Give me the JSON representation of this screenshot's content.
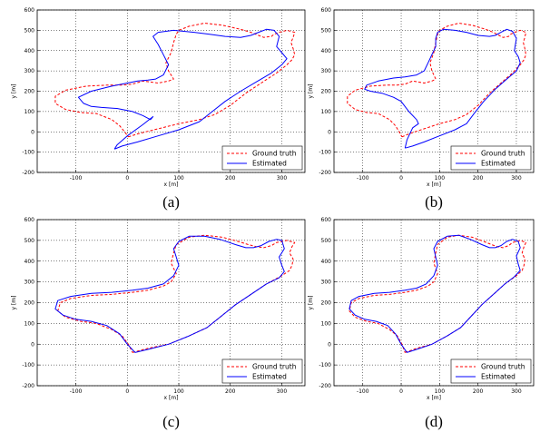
{
  "panels": [
    {
      "caption": "(a)",
      "chart_data": {
        "type": "line",
        "xlabel": "x [m]",
        "ylabel": "y [m]",
        "xlim": [
          -175,
          345
        ],
        "ylim": [
          -200,
          600
        ],
        "xticks": [
          -100,
          0,
          100,
          200,
          300
        ],
        "yticks": [
          -200,
          -100,
          0,
          100,
          200,
          300,
          400,
          500,
          600
        ],
        "grid": true,
        "legend_position": "lower-right",
        "series": [
          {
            "name": "Ground truth",
            "style": "dashed",
            "color": "#ff0000",
            "x": [
              2,
              20,
              60,
              100,
              140,
              170,
              200,
              230,
              260,
              290,
              310,
              320,
              325,
              322,
              318,
              322,
              325,
              310,
              295,
              285,
              280,
              265,
              255,
              240,
              220,
              185,
              150,
              120,
              100,
              95,
              90,
              85,
              75,
              80,
              90,
              80,
              60,
              30,
              10,
              -10,
              -40,
              -80,
              -120,
              -140,
              -140,
              -120,
              -90,
              -60,
              -30,
              -15,
              -5,
              2
            ],
            "y": [
              -25,
              -10,
              15,
              40,
              60,
              85,
              130,
              190,
              240,
              290,
              330,
              355,
              380,
              410,
              440,
              465,
              490,
              500,
              490,
              480,
              470,
              465,
              475,
              490,
              505,
              525,
              535,
              520,
              500,
              480,
              440,
              390,
              340,
              300,
              260,
              250,
              240,
              250,
              235,
              230,
              230,
              225,
              205,
              175,
              140,
              110,
              95,
              90,
              60,
              30,
              0,
              -25
            ]
          },
          {
            "name": "Estimated",
            "style": "solid",
            "color": "#0000ff",
            "x": [
              -25,
              -10,
              20,
              60,
              100,
              140,
              165,
              190,
              220,
              250,
              280,
              300,
              310,
              300,
              290,
              295,
              285,
              270,
              255,
              240,
              220,
              190,
              160,
              130,
              90,
              60,
              50,
              60,
              70,
              80,
              70,
              55,
              40,
              20,
              0,
              -30,
              -70,
              -95,
              -85,
              -70,
              -50,
              -20,
              10,
              30,
              45,
              50,
              30,
              0,
              -20,
              -25
            ],
            "y": [
              -85,
              -70,
              -50,
              -20,
              10,
              50,
              100,
              150,
              200,
              245,
              290,
              330,
              360,
              390,
              420,
              470,
              500,
              505,
              490,
              475,
              465,
              470,
              480,
              490,
              500,
              490,
              470,
              430,
              380,
              330,
              280,
              260,
              255,
              250,
              240,
              225,
              200,
              170,
              140,
              125,
              120,
              115,
              100,
              80,
              60,
              75,
              35,
              -20,
              -65,
              -85
            ]
          }
        ]
      },
      "legend": [
        "Ground truth",
        "Estimated"
      ]
    },
    {
      "caption": "(b)",
      "chart_data": {
        "type": "line",
        "xlabel": "x [m]",
        "ylabel": "y [m]",
        "xlim": [
          -175,
          345
        ],
        "ylim": [
          -200,
          600
        ],
        "xticks": [
          -100,
          0,
          100,
          200,
          300
        ],
        "yticks": [
          -200,
          -100,
          0,
          100,
          200,
          300,
          400,
          500,
          600
        ],
        "grid": true,
        "legend_position": "lower-right",
        "series": [
          {
            "name": "Ground truth",
            "style": "dashed",
            "color": "#ff0000",
            "x": [
              2,
              20,
              60,
              100,
              140,
              170,
              200,
              230,
              260,
              290,
              310,
              320,
              325,
              322,
              318,
              322,
              325,
              310,
              295,
              285,
              280,
              265,
              255,
              240,
              220,
              185,
              150,
              120,
              100,
              95,
              90,
              85,
              75,
              80,
              90,
              80,
              60,
              30,
              10,
              -10,
              -40,
              -80,
              -120,
              -140,
              -140,
              -120,
              -90,
              -60,
              -30,
              -15,
              -5,
              2
            ],
            "y": [
              -25,
              -10,
              15,
              40,
              60,
              85,
              130,
              190,
              240,
              290,
              330,
              355,
              380,
              410,
              440,
              465,
              490,
              500,
              490,
              480,
              470,
              465,
              475,
              490,
              505,
              525,
              535,
              520,
              500,
              480,
              440,
              390,
              340,
              300,
              260,
              250,
              240,
              250,
              235,
              230,
              230,
              225,
              205,
              175,
              140,
              110,
              95,
              90,
              60,
              30,
              0,
              -25
            ]
          },
          {
            "name": "Estimated",
            "style": "solid",
            "color": "#0000ff",
            "x": [
              10,
              30,
              60,
              100,
              140,
              170,
              190,
              215,
              245,
              275,
              300,
              310,
              305,
              295,
              300,
              290,
              275,
              260,
              245,
              230,
              200,
              170,
              140,
              110,
              95,
              90,
              90,
              80,
              70,
              60,
              40,
              10,
              -20,
              -60,
              -90,
              -95,
              -80,
              -50,
              -20,
              0,
              20,
              40,
              45,
              30,
              15,
              10
            ],
            "y": [
              -80,
              -70,
              -50,
              -20,
              10,
              40,
              90,
              150,
              210,
              260,
              300,
              340,
              370,
              400,
              460,
              495,
              505,
              490,
              475,
              470,
              475,
              490,
              500,
              505,
              490,
              460,
              420,
              380,
              340,
              300,
              280,
              270,
              265,
              250,
              230,
              210,
              200,
              190,
              170,
              150,
              100,
              60,
              40,
              20,
              -40,
              -80
            ]
          }
        ]
      },
      "legend": [
        "Ground truth",
        "Estimated"
      ]
    },
    {
      "caption": "(c)",
      "chart_data": {
        "type": "line",
        "xlabel": "x [m]",
        "ylabel": "y [m]",
        "xlim": [
          -175,
          345
        ],
        "ylim": [
          -200,
          600
        ],
        "xticks": [
          -100,
          0,
          100,
          200,
          300
        ],
        "yticks": [
          -200,
          -100,
          0,
          100,
          200,
          300,
          400,
          500,
          600
        ],
        "grid": true,
        "legend_position": "lower-right",
        "series": [
          {
            "name": "Ground truth",
            "style": "dashed",
            "color": "#ff0000",
            "x": [
              10,
              40,
              80,
              120,
              155,
              180,
              210,
              240,
              270,
              300,
              315,
              320,
              322,
              315,
              320,
              325,
              310,
              290,
              280,
              265,
              250,
              235,
              215,
              185,
              150,
              120,
              95,
              90,
              85,
              95,
              85,
              70,
              40,
              10,
              -30,
              -70,
              -110,
              -130,
              -135,
              -120,
              -90,
              -60,
              -30,
              -10,
              2,
              10
            ],
            "y": [
              -40,
              -20,
              0,
              40,
              80,
              130,
              190,
              240,
              290,
              330,
              355,
              380,
              410,
              440,
              470,
              490,
              500,
              490,
              475,
              465,
              470,
              480,
              495,
              515,
              525,
              515,
              480,
              440,
              390,
              340,
              300,
              280,
              260,
              250,
              240,
              235,
              220,
              200,
              160,
              130,
              110,
              100,
              70,
              40,
              0,
              -40
            ]
          },
          {
            "name": "Estimated",
            "style": "solid",
            "color": "#0000ff",
            "x": [
              15,
              40,
              80,
              120,
              155,
              180,
              210,
              240,
              270,
              295,
              305,
              300,
              295,
              305,
              300,
              290,
              275,
              260,
              245,
              230,
              210,
              180,
              150,
              120,
              100,
              90,
              95,
              100,
              90,
              70,
              40,
              10,
              -30,
              -70,
              -110,
              -135,
              -140,
              -125,
              -100,
              -70,
              -40,
              -15,
              0,
              15
            ],
            "y": [
              -40,
              -25,
              0,
              40,
              80,
              130,
              190,
              240,
              290,
              320,
              350,
              380,
              420,
              460,
              500,
              505,
              495,
              475,
              465,
              465,
              480,
              505,
              520,
              520,
              495,
              460,
              420,
              380,
              330,
              290,
              270,
              260,
              250,
              245,
              230,
              210,
              170,
              140,
              120,
              110,
              90,
              50,
              0,
              -40
            ]
          }
        ]
      },
      "legend": [
        "Ground truth",
        "Estimated"
      ]
    },
    {
      "caption": "(d)",
      "chart_data": {
        "type": "line",
        "xlabel": "x [m]",
        "ylabel": "y [m]",
        "xlim": [
          -175,
          345
        ],
        "ylim": [
          -200,
          600
        ],
        "xticks": [
          -100,
          0,
          100,
          200,
          300
        ],
        "yticks": [
          -200,
          -100,
          0,
          100,
          200,
          300,
          400,
          500,
          600
        ],
        "grid": true,
        "legend_position": "lower-right",
        "series": [
          {
            "name": "Ground truth",
            "style": "dashed",
            "color": "#ff0000",
            "x": [
              10,
              40,
              80,
              120,
              155,
              180,
              210,
              240,
              270,
              300,
              315,
              320,
              322,
              315,
              320,
              325,
              310,
              290,
              280,
              265,
              250,
              235,
              215,
              185,
              150,
              120,
              95,
              90,
              85,
              95,
              85,
              70,
              40,
              10,
              -30,
              -70,
              -110,
              -130,
              -135,
              -120,
              -90,
              -60,
              -30,
              -10,
              2,
              10
            ],
            "y": [
              -40,
              -20,
              0,
              40,
              80,
              130,
              190,
              240,
              290,
              330,
              355,
              380,
              410,
              440,
              470,
              490,
              500,
              490,
              475,
              465,
              470,
              480,
              495,
              515,
              525,
              515,
              480,
              440,
              390,
              340,
              300,
              280,
              260,
              250,
              240,
              235,
              220,
              200,
              160,
              130,
              110,
              100,
              70,
              40,
              0,
              -40
            ]
          },
          {
            "name": "Estimated",
            "style": "solid",
            "color": "#0000ff",
            "x": [
              15,
              40,
              80,
              120,
              155,
              180,
              210,
              240,
              270,
              295,
              310,
              305,
              300,
              310,
              305,
              290,
              275,
              260,
              245,
              230,
              210,
              180,
              150,
              120,
              95,
              85,
              90,
              95,
              85,
              65,
              40,
              10,
              -30,
              -70,
              -110,
              -130,
              -135,
              -120,
              -95,
              -65,
              -35,
              -15,
              0,
              15
            ],
            "y": [
              -40,
              -25,
              0,
              40,
              80,
              130,
              190,
              240,
              290,
              325,
              355,
              385,
              425,
              465,
              495,
              505,
              495,
              475,
              465,
              465,
              480,
              505,
              525,
              520,
              495,
              460,
              420,
              380,
              330,
              290,
              270,
              260,
              250,
              245,
              230,
              210,
              170,
              140,
              120,
              110,
              90,
              50,
              0,
              -40
            ]
          }
        ]
      },
      "legend": [
        "Ground truth",
        "Estimated"
      ]
    }
  ]
}
